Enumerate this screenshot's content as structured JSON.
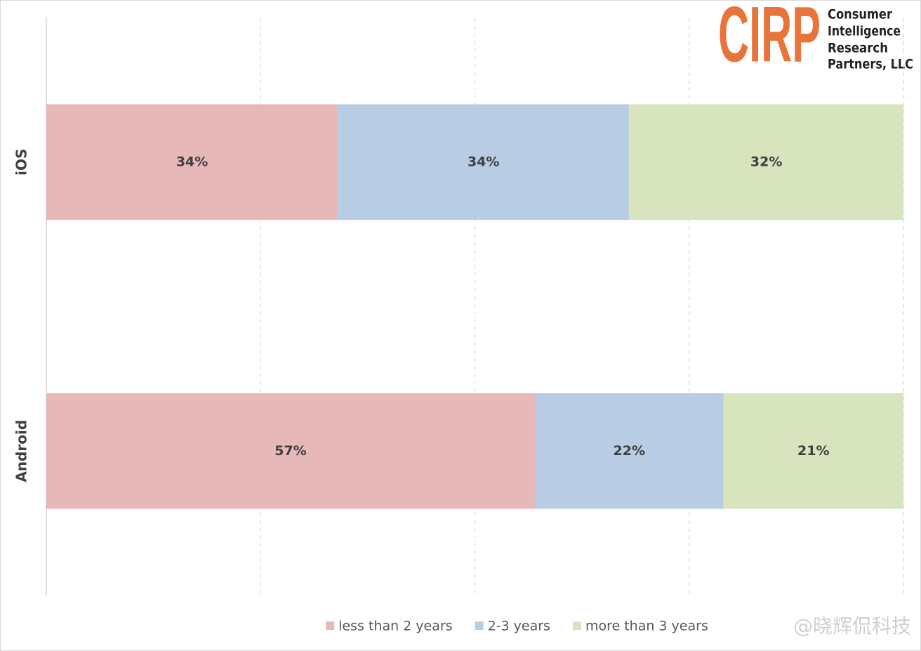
{
  "chart_data": {
    "type": "stacked-bar-horizontal",
    "categories": [
      "iOS",
      "Android"
    ],
    "series": [
      {
        "name": "less than 2 years",
        "color": "#e6b8b7",
        "values": [
          34,
          57
        ],
        "value_labels": [
          "34%",
          "57%"
        ]
      },
      {
        "name": "2-3 years",
        "color": "#b8cce4",
        "values": [
          34,
          22
        ],
        "value_labels": [
          "34%",
          "22%"
        ]
      },
      {
        "name": "more than 3 years",
        "color": "#d7e4bd",
        "values": [
          32,
          21
        ],
        "value_labels": [
          "32%",
          "21%"
        ]
      }
    ],
    "xlim": [
      0,
      100
    ],
    "xticks": [
      0,
      25,
      50,
      75,
      100
    ],
    "grid": true,
    "legend": "bottom"
  },
  "logo": {
    "name": "CIRP",
    "lines": [
      "Consumer",
      "Intelligence",
      "Research",
      "Partners, LLC"
    ]
  },
  "watermark": "@晓辉侃科技"
}
